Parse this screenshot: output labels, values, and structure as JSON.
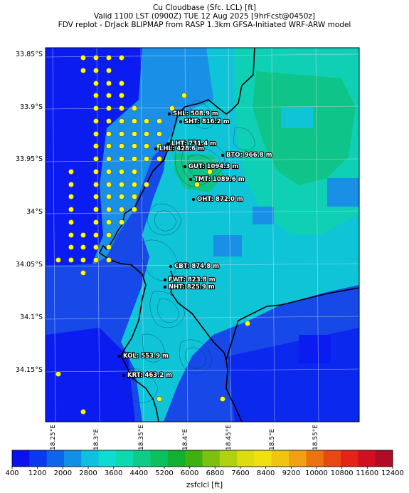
{
  "header": {
    "title": "Cu Cloudbase (Sfc. LCL) [ft]",
    "valid": "Valid 1100 LST (0900Z) TUE 12 Aug 2025 [9hrFcst@0450z]",
    "source": "FDV replot - DrJack BLIPMAP from RASP 1.3km GFSA-Initiated WRF-ARW model"
  },
  "map": {
    "lat_labels": [
      "33.85°S",
      "33.9°S",
      "33.95°S",
      "34°S",
      "34.05°S",
      "34.1°S",
      "34.15°S"
    ],
    "lon_labels": [
      "18.25°E",
      "18.3°E",
      "18.35°E",
      "18.4°E",
      "18.45°E",
      "18.5°E",
      "18.55°E"
    ],
    "stations": [
      {
        "label": "SHL: 508.9 m"
      },
      {
        "label": "SHT: 816.2 m"
      },
      {
        "label": "LHT: 731.4 m"
      },
      {
        "label": "LHL: 428.6 m"
      },
      {
        "label": "BTO: 966.8 m"
      },
      {
        "label": "GUT: 1094.3 m"
      },
      {
        "label": "TMT: 1089.6 m"
      },
      {
        "label": "OHT: 872.0 m"
      },
      {
        "label": "CBT: 874.8 m"
      },
      {
        "label": "FWT: 823.8 m"
      },
      {
        "label": "NHT: 825.9 m"
      },
      {
        "label": "KOL: 553.9 m"
      },
      {
        "label": "KRT: 463.2 m"
      }
    ],
    "colors": {
      "ocean_deep": "#0a1cf0",
      "ocean": "#1748e8",
      "coast_blue": "#1990e6",
      "land_cyan": "#10c4d8",
      "land_teal": "#0fd0b4",
      "ridge_green": "#0fc488",
      "marker": "#ffff00"
    }
  },
  "colorbar": {
    "ticks": [
      "400",
      "1200",
      "2000",
      "2800",
      "3600",
      "4400",
      "5200",
      "6000",
      "6800",
      "7600",
      "8400",
      "9200",
      "10000",
      "10800",
      "11600",
      "12400"
    ],
    "colors": [
      "#0a10ee",
      "#0a38ee",
      "#0e64ea",
      "#1290e6",
      "#10c0e0",
      "#0fdcd0",
      "#0ed8b0",
      "#0ecc88",
      "#0cc060",
      "#12b030",
      "#40b010",
      "#7cc010",
      "#b0d010",
      "#dcdc10",
      "#f0e010",
      "#f0c410",
      "#f0a010",
      "#ec7410",
      "#e84814",
      "#e42418",
      "#d01020",
      "#b00c28"
    ],
    "label": "zsfclcl [ft]"
  }
}
